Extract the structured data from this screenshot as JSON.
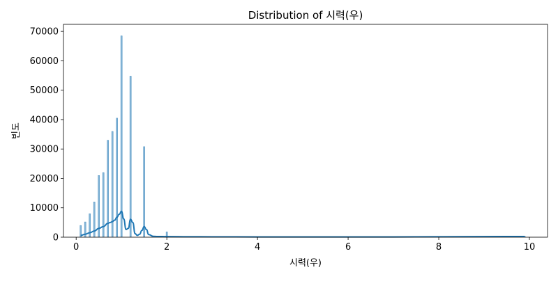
{
  "chart_data": {
    "type": "bar",
    "title": "Distribution of 시력(우)",
    "xlabel": "시력(우)",
    "ylabel": "빈도",
    "xlim": [
      -0.28,
      10.4
    ],
    "ylim": [
      0,
      72400
    ],
    "x_ticks": [
      0,
      2,
      4,
      6,
      8,
      10
    ],
    "x_tick_labels": [
      "0",
      "2",
      "4",
      "6",
      "8",
      "10"
    ],
    "y_ticks": [
      0,
      10000,
      20000,
      30000,
      40000,
      50000,
      60000,
      70000
    ],
    "y_tick_labels": [
      "0",
      "10000",
      "20000",
      "30000",
      "40000",
      "50000",
      "60000",
      "70000"
    ],
    "grid": false,
    "colors": {
      "bar": "#1f77b4",
      "kde": "#1f77b4",
      "axes": "#000000"
    },
    "bars": [
      {
        "x": 0.1,
        "count": 4000
      },
      {
        "x": 0.2,
        "count": 5200
      },
      {
        "x": 0.3,
        "count": 8000
      },
      {
        "x": 0.4,
        "count": 12000
      },
      {
        "x": 0.5,
        "count": 21000
      },
      {
        "x": 0.6,
        "count": 22000
      },
      {
        "x": 0.7,
        "count": 33000
      },
      {
        "x": 0.8,
        "count": 36000
      },
      {
        "x": 0.9,
        "count": 40500
      },
      {
        "x": 1.0,
        "count": 68500
      },
      {
        "x": 1.2,
        "count": 54800
      },
      {
        "x": 1.5,
        "count": 30800
      },
      {
        "x": 2.0,
        "count": 1800
      },
      {
        "x": 9.9,
        "count": 200
      }
    ],
    "kde": {
      "x": [
        0.1,
        0.2,
        0.3,
        0.4,
        0.5,
        0.6,
        0.7,
        0.75,
        0.8,
        0.85,
        0.9,
        0.95,
        1.0,
        1.05,
        1.1,
        1.15,
        1.2,
        1.25,
        1.3,
        1.35,
        1.4,
        1.45,
        1.5,
        1.55,
        1.6,
        1.7,
        1.8,
        2.0,
        2.5,
        3,
        4,
        5,
        6,
        7,
        8,
        9,
        9.9
      ],
      "y": [
        600,
        1000,
        1500,
        2100,
        3000,
        3600,
        4700,
        5000,
        5300,
        5800,
        6800,
        7800,
        8800,
        6200,
        2600,
        3000,
        6100,
        5000,
        1200,
        600,
        1000,
        2300,
        3600,
        2600,
        900,
        300,
        250,
        200,
        150,
        120,
        100,
        100,
        100,
        100,
        150,
        200,
        250
      ]
    }
  }
}
